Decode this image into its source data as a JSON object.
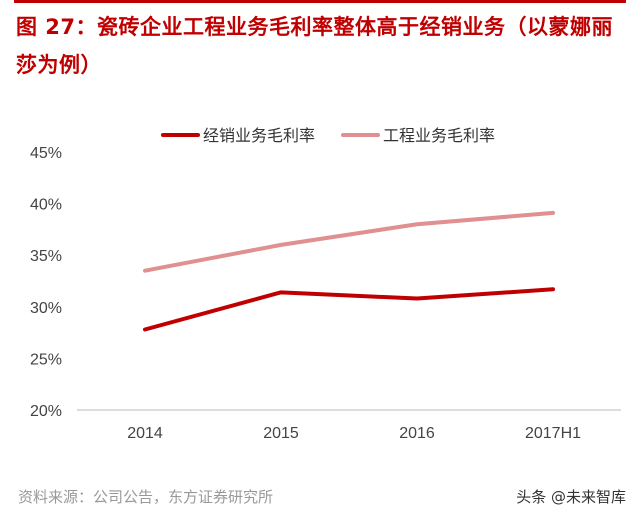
{
  "title": "图 27：瓷砖企业工程业务毛利率整体高于经销业务（以蒙娜丽莎为例）",
  "source": "资料来源：公司公告，东方证券研究所",
  "watermark": "头条 @未来智库",
  "chart_data": {
    "type": "line",
    "categories": [
      "2014",
      "2015",
      "2016",
      "2017H1"
    ],
    "series": [
      {
        "name": "经销业务毛利率",
        "values": [
          27.8,
          31.4,
          30.8,
          31.7
        ],
        "color": "#c00000"
      },
      {
        "name": "工程业务毛利率",
        "values": [
          33.5,
          36.0,
          38.0,
          39.1
        ],
        "color": "#e09090"
      }
    ],
    "ylim": [
      20,
      45
    ],
    "yticks": [
      "20%",
      "25%",
      "30%",
      "35%",
      "40%",
      "45%"
    ],
    "ytick_values": [
      20,
      25,
      30,
      35,
      40,
      45
    ],
    "legend": "top-center",
    "grid": false
  }
}
